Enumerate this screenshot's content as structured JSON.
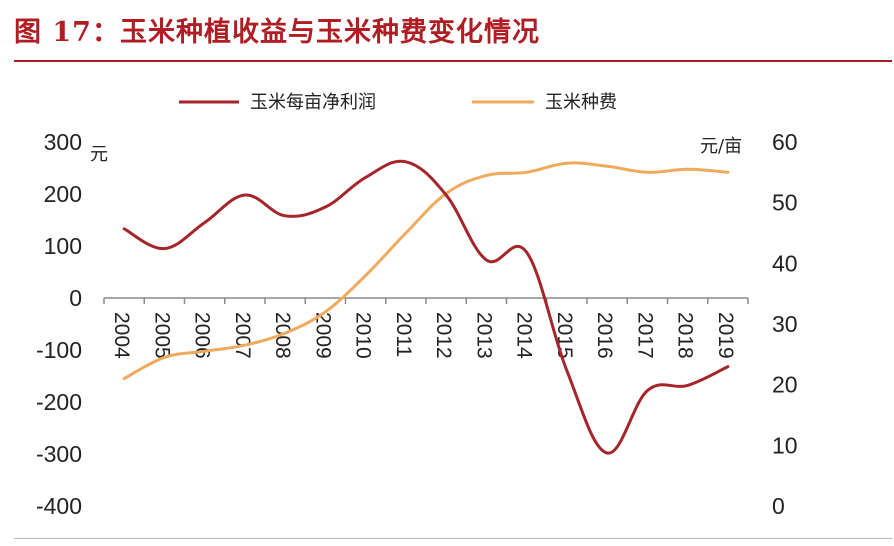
{
  "figure": {
    "title": "图 17：玉米种植收益与玉米种费变化情况"
  },
  "chart_data": {
    "type": "line",
    "categories": [
      "2004",
      "2005",
      "2006",
      "2007",
      "2008",
      "2009",
      "2010",
      "2011",
      "2012",
      "2013",
      "2014",
      "2015",
      "2016",
      "2017",
      "2018",
      "2019"
    ],
    "series": [
      {
        "name": "玉米每亩净利润",
        "axis": "left",
        "color": "#a5252a",
        "values": [
          133,
          95,
          145,
          198,
          158,
          175,
          232,
          262,
          198,
          73,
          88,
          -140,
          -298,
          -178,
          -168,
          -132
        ]
      },
      {
        "name": "玉米种费",
        "axis": "right",
        "color": "#efaa5e",
        "values": [
          21,
          24.5,
          25.5,
          26.5,
          28.5,
          32,
          38,
          45,
          51.5,
          54.5,
          55,
          56.5,
          56,
          55,
          55.5,
          55
        ]
      }
    ],
    "y_left": {
      "unit": "元",
      "min": -400,
      "max": 300,
      "ticks": [
        "300",
        "200",
        "100",
        "0",
        "-100",
        "-200",
        "-300",
        "-400"
      ]
    },
    "y_right": {
      "unit": "元/亩",
      "min": 0,
      "max": 60,
      "ticks": [
        "60",
        "50",
        "40",
        "30",
        "20",
        "10",
        "0"
      ]
    },
    "legend_position": "top",
    "grid": false
  }
}
